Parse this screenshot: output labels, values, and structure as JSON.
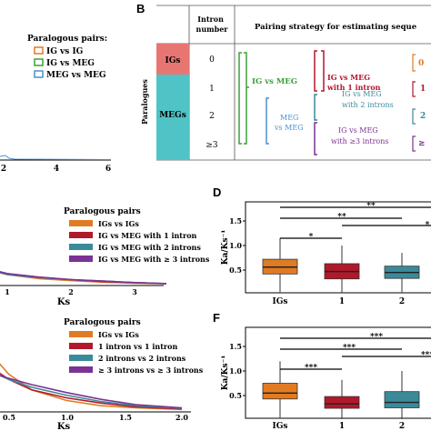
{
  "colors": {
    "orange": "#E07B24",
    "red": "#B2182B",
    "teal": "#3A8A9A",
    "purple": "#7B3294",
    "green": "#3BA03B",
    "blue": "#4A90D0",
    "igs_box": "#E77672",
    "megs_box": "#4FC3C6"
  },
  "panel_a": {
    "legend_title": "Paralogous pairs:",
    "legend": [
      "IG vs IG",
      "IG vs MEG",
      "MEG vs MEG"
    ],
    "x_ticks": [
      "2",
      "4",
      "6"
    ]
  },
  "panel_b": {
    "letter": "B",
    "col_intron": "Intron\nnumber",
    "col_strategy": "Pairing strategy for estimating seque",
    "row_label": "Paralogues",
    "groups": [
      "IGs",
      "MEGs"
    ],
    "intron_numbers": [
      "0",
      "1",
      "2",
      "≥3"
    ],
    "labels": {
      "ig_vs_meg": "IG vs MEG",
      "meg_vs_meg": "MEG\nvs MEG",
      "with1": "IG vs MEG\nwith 1 intron",
      "with2": "IG vs MEG\nwith 2 introns",
      "with3": "IG vs MEG\nwith ≥3 introns",
      "edge_numbers": [
        "0",
        "1",
        "2",
        "≥"
      ]
    }
  },
  "panel_c": {
    "legend_title": "Paralogous pairs",
    "legend": [
      "IGs vs IGs",
      "IG vs MEG with 1 intron",
      "IG vs MEG with 2 introns",
      "IG vs MEG with ≥ 3 introns"
    ],
    "xlabel": "Ks",
    "x_ticks": [
      "1",
      "2",
      "3"
    ]
  },
  "panel_d": {
    "letter": "D",
    "ylabel": "Ka/Ks⁻¹",
    "y_ticks": [
      "0.5",
      "1.0",
      "1.5"
    ],
    "x_ticks": [
      "IGs",
      "1",
      "2"
    ],
    "sig": [
      "**",
      "**",
      "*",
      "*"
    ]
  },
  "panel_e": {
    "legend_title": "Paralogous pairs",
    "legend": [
      "IGs vs IGs",
      "1 intron vs 1 intron",
      "2 introns vs 2 introns",
      "≥ 3 introns vs ≥ 3 introns"
    ],
    "xlabel": "Ks",
    "x_ticks": [
      "0.5",
      "1.0",
      "1.5",
      "2.0"
    ]
  },
  "panel_f": {
    "letter": "F",
    "ylabel": "Ka/Ks⁻¹",
    "y_ticks": [
      "0.5",
      "1.0",
      "1.5"
    ],
    "x_ticks": [
      "IGs",
      "1",
      "2"
    ],
    "sig": [
      "***",
      "***",
      "***",
      "***"
    ]
  },
  "chart_data": [
    {
      "type": "line",
      "panel": "C",
      "xlabel": "Ks",
      "series": [
        {
          "name": "IGs vs IGs",
          "x": [
            0,
            0.25,
            0.5,
            0.75,
            1.0,
            1.5,
            2.0,
            2.5,
            3.0,
            3.5
          ],
          "y": [
            0.3,
            0.9,
            0.55,
            0.3,
            0.2,
            0.12,
            0.08,
            0.05,
            0.03,
            0.02
          ]
        },
        {
          "name": "IG vs MEG with 1 intron",
          "x": [
            0,
            0.25,
            0.5,
            0.75,
            1.0,
            1.5,
            2.0,
            2.5,
            3.0,
            3.5
          ],
          "y": [
            0.25,
            0.7,
            0.45,
            0.3,
            0.22,
            0.15,
            0.1,
            0.06,
            0.04,
            0.02
          ]
        },
        {
          "name": "IG vs MEG with 2 introns",
          "x": [
            0,
            0.25,
            0.5,
            0.75,
            1.0,
            1.5,
            2.0,
            2.5,
            3.0,
            3.5
          ],
          "y": [
            0.2,
            0.6,
            0.4,
            0.28,
            0.2,
            0.14,
            0.1,
            0.07,
            0.04,
            0.02
          ]
        },
        {
          "name": "IG vs MEG with ≥ 3 introns",
          "x": [
            0,
            0.25,
            0.5,
            0.75,
            1.0,
            1.5,
            2.0,
            2.5,
            3.0,
            3.5
          ],
          "y": [
            0.2,
            0.55,
            0.42,
            0.3,
            0.22,
            0.15,
            0.1,
            0.07,
            0.04,
            0.02
          ]
        }
      ]
    },
    {
      "type": "box",
      "panel": "D",
      "ylabel": "Ka/Ks⁻¹",
      "categories": [
        "IGs",
        "1",
        "2"
      ],
      "boxes": [
        {
          "q1": 0.42,
          "median": 0.56,
          "q3": 0.72,
          "low": 0.05,
          "high": 1.15
        },
        {
          "q1": 0.32,
          "median": 0.47,
          "q3": 0.63,
          "low": 0.03,
          "high": 1.0
        },
        {
          "q1": 0.33,
          "median": 0.45,
          "q3": 0.58,
          "low": 0.05,
          "high": 0.85
        }
      ]
    },
    {
      "type": "line",
      "panel": "E",
      "xlabel": "Ks",
      "series": [
        {
          "name": "IGs vs IGs",
          "x": [
            0,
            0.1,
            0.2,
            0.3,
            0.5,
            0.7,
            1.0,
            1.3,
            1.6,
            2.0
          ],
          "y": [
            0.4,
            1.0,
            1.3,
            1.2,
            0.7,
            0.4,
            0.2,
            0.1,
            0.06,
            0.03
          ]
        },
        {
          "name": "1 intron vs 1 intron",
          "x": [
            0,
            0.1,
            0.2,
            0.3,
            0.5,
            0.7,
            1.0,
            1.3,
            1.6,
            2.0
          ],
          "y": [
            0.3,
            0.8,
            1.0,
            0.9,
            0.6,
            0.4,
            0.25,
            0.15,
            0.08,
            0.04
          ]
        },
        {
          "name": "2 introns vs 2 introns",
          "x": [
            0,
            0.1,
            0.2,
            0.3,
            0.5,
            0.7,
            1.0,
            1.3,
            1.6,
            2.0
          ],
          "y": [
            0.3,
            0.7,
            0.85,
            0.8,
            0.6,
            0.45,
            0.3,
            0.18,
            0.1,
            0.05
          ]
        },
        {
          "name": "≥ 3 introns vs ≥ 3 introns",
          "x": [
            0,
            0.1,
            0.2,
            0.3,
            0.5,
            0.7,
            1.0,
            1.3,
            1.6,
            2.0
          ],
          "y": [
            0.25,
            0.6,
            0.75,
            0.75,
            0.62,
            0.5,
            0.35,
            0.22,
            0.12,
            0.06
          ]
        }
      ]
    },
    {
      "type": "box",
      "panel": "F",
      "ylabel": "Ka/Ks⁻¹",
      "categories": [
        "IGs",
        "1",
        "2"
      ],
      "boxes": [
        {
          "q1": 0.43,
          "median": 0.55,
          "q3": 0.75,
          "low": 0.05,
          "high": 1.2
        },
        {
          "q1": 0.24,
          "median": 0.33,
          "q3": 0.48,
          "low": 0.02,
          "high": 0.82
        },
        {
          "q1": 0.25,
          "median": 0.36,
          "q3": 0.58,
          "low": 0.02,
          "high": 1.0
        }
      ]
    }
  ]
}
